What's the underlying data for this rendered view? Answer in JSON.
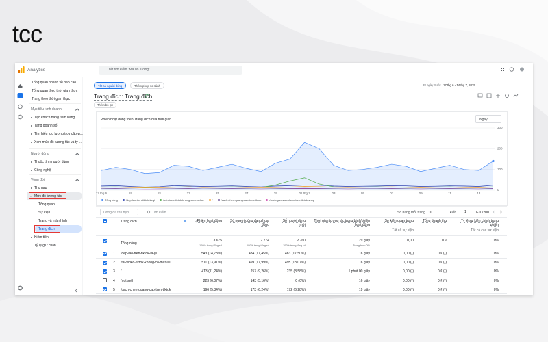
{
  "logo": "tcc",
  "app": {
    "name": "Analytics",
    "search": "Thử tìm kiếm “Mã đo lường”"
  },
  "sidebar": {
    "top": [
      "Tổng quan nhanh về báo cáo",
      "Tổng quan theo thời gian thực",
      "Trang theo thời gian thực"
    ],
    "sections": [
      {
        "title": "Mục tiêu kinh doanh",
        "items": [
          "Tạo khách hàng tiềm năng",
          "Tăng doanh số",
          "Tìm hiểu lưu lượng truy cập w...",
          "Xem mức độ tương tác và tỷ l..."
        ]
      },
      {
        "title": "Người dùng",
        "items": [
          "Thuộc tính người dùng",
          "Công nghệ"
        ]
      },
      {
        "title": "Vòng đời",
        "items": [
          "Thu nạp",
          "Mức độ tương tác",
          "Kiếm tiền",
          "Tỷ lệ giữ chân"
        ],
        "subitems": [
          "Tổng quan",
          "Sự kiện",
          "Trang và màn hình",
          "Trang đích"
        ]
      }
    ]
  },
  "report": {
    "chips": [
      "Tất cả người dùng",
      "Thêm phép so sánh"
    ],
    "date_range_label": "28 ngày trước",
    "date_range": "17 thg 6 - 14 thg 7, 2025",
    "title": "Trang đích: Trang đích",
    "filter": "Thêm bộ lọc",
    "interval": "Ngày"
  },
  "chart_data": {
    "type": "line",
    "title": "Phiên hoạt động theo Trang đích qua thời gian",
    "categories": [
      "17 thg 6",
      null,
      "19",
      null,
      "21",
      null,
      "23",
      null,
      "25",
      null,
      "27",
      null,
      "29",
      null,
      "01 thg 7",
      null,
      "03",
      null,
      "05",
      null,
      "07",
      null,
      "09",
      null,
      "11",
      null,
      "13",
      null
    ],
    "series": [
      {
        "name": "Tổng cộng",
        "color": "#4c8df6",
        "area": true,
        "values": [
          95,
          110,
          100,
          80,
          85,
          120,
          115,
          95,
          110,
          125,
          105,
          90,
          130,
          150,
          230,
          200,
          120,
          95,
          100,
          110,
          125,
          115,
          90,
          105,
          120,
          100,
          95,
          140
        ]
      },
      {
        "name": "/dep-lao-tren-tiktok-la-gi",
        "color": "#3f51b5",
        "values": [
          20,
          22,
          18,
          15,
          17,
          22,
          20,
          18,
          19,
          21,
          18,
          16,
          20,
          22,
          25,
          24,
          20,
          18,
          19,
          20,
          22,
          21,
          18,
          19,
          21,
          20,
          18,
          24
        ]
      },
      {
        "name": "/tai-video-tiktok-khong-co-mat-luu",
        "color": "#5fb05a",
        "values": [
          15,
          16,
          14,
          12,
          13,
          15,
          16,
          14,
          15,
          16,
          15,
          13,
          25,
          45,
          60,
          30,
          16,
          14,
          15,
          16,
          15,
          14,
          13,
          15,
          16,
          14,
          13,
          16
        ]
      },
      {
        "name": "/",
        "color": "#f0a030",
        "values": [
          14,
          15,
          13,
          11,
          12,
          14,
          16,
          13,
          14,
          15,
          13,
          12,
          13,
          15,
          18,
          17,
          14,
          13,
          14,
          15,
          16,
          14,
          12,
          14,
          15,
          13,
          12,
          15
        ]
      },
      {
        "name": "/cach-chen-quang-cao-tren-tiktok",
        "color": "#5b3f8f",
        "values": [
          7,
          8,
          6,
          5,
          6,
          7,
          8,
          6,
          7,
          8,
          7,
          6,
          7,
          8,
          9,
          8,
          7,
          6,
          7,
          7,
          8,
          7,
          6,
          7,
          8,
          7,
          6,
          8
        ]
      },
      {
        "name": "/cach-gan-san-pham-tren-tiktok-shop",
        "color": "#d35eb8",
        "values": [
          5,
          6,
          5,
          4,
          4,
          5,
          6,
          5,
          5,
          6,
          5,
          4,
          5,
          6,
          7,
          6,
          5,
          4,
          5,
          5,
          6,
          5,
          4,
          5,
          6,
          5,
          4,
          6
        ]
      }
    ],
    "ylim": [
      0,
      300
    ],
    "yticks": [
      0,
      100,
      200,
      300
    ],
    "grid": true
  },
  "table": {
    "toolbar": {
      "collapsed": "Dòng đã thu hẹp",
      "search": "Tìm kiếm...",
      "rows_per_page_label": "Số hàng mỗi trang",
      "rows_per_page": "10",
      "goto_label": "Đến",
      "goto": "1",
      "range": "1-10/200"
    },
    "columns": [
      {
        "name": "Trang đích"
      },
      {
        "name": "Phiên hoạt động"
      },
      {
        "name": "Số người dùng đang hoạt động"
      },
      {
        "name": "Số người dùng mới"
      },
      {
        "name": "Thời gian tương tác trung bình/phiên hoạt động"
      },
      {
        "name": "Sự kiện quan trọng",
        "sub": "Tất cả sự kiện"
      },
      {
        "name": "Tổng doanh thu"
      },
      {
        "name": "Tỷ lệ sự kiện chính trong phiên",
        "sub": "Tất cả các sự kiện"
      }
    ],
    "total": {
      "label": "Tổng cộng",
      "values": [
        "3.675",
        "2.774",
        "2.760",
        "29 giây",
        "0,00",
        "0 ₫",
        "0%"
      ],
      "notes": [
        "100% trong tổng số",
        "100% trong tổng số",
        "100% trong tổng số",
        "Trung bình 0%"
      ]
    },
    "rows": [
      [
        "1",
        "/dep-lao-tren-tiktok-la-gi",
        "543 (14,78%)",
        "484 (17,45%)",
        "483 (17,50%)",
        "16 giây",
        "0,00 (-)",
        "0 ₫ (-)",
        "0%"
      ],
      [
        "2",
        "/tai-video-tiktok-khong-co-mat-luu",
        "511 (13,91%)",
        "499 (17,99%)",
        "495 (18,07%)",
        "6 giây",
        "0,00 (-)",
        "0 ₫ (-)",
        "0%"
      ],
      [
        "3",
        "/",
        "413 (11,24%)",
        "257 (9,26%)",
        "235 (8,58%)",
        "1 phút 00 giây",
        "0,00 (-)",
        "0 ₫ (-)",
        "0%"
      ],
      [
        "4",
        "(not set)",
        "223 (6,07%)",
        "143 (5,16%)",
        "0 (0%)",
        "16 giây",
        "0,00 (-)",
        "0 ₫ (-)",
        "0%"
      ],
      [
        "5",
        "/cach-chen-quang-cao-tren-tiktok",
        "196 (5,34%)",
        "173 (6,24%)",
        "172 (6,28%)",
        "19 giây",
        "0,00 (-)",
        "0 ₫ (-)",
        "0%"
      ]
    ],
    "checked": [
      true,
      true,
      true,
      false,
      true
    ]
  }
}
